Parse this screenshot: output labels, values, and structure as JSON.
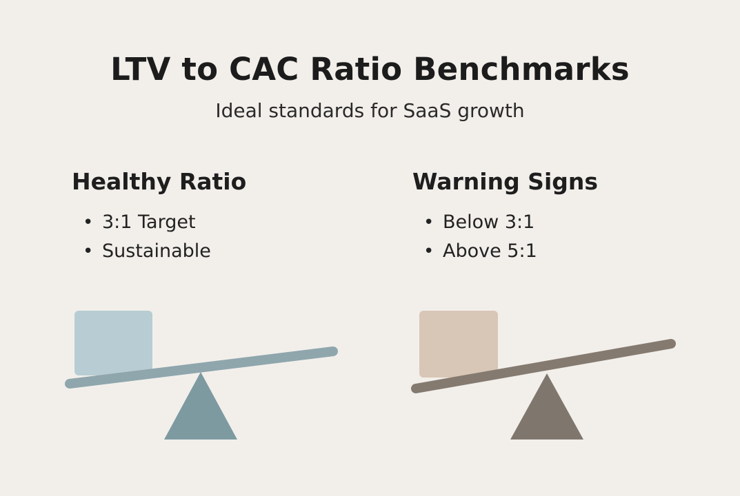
{
  "header": {
    "title": "LTV to CAC Ratio Benchmarks",
    "subtitle": "Ideal standards for SaaS growth"
  },
  "panels": [
    {
      "heading": "Healthy Ratio",
      "bullets": [
        "3:1 Target",
        "Sustainable"
      ],
      "colors": {
        "light_block": "#b8cdd3",
        "tall_block": "#2589a6",
        "beam": "#8fa6ad",
        "fulcrum": "#7d9aa1"
      }
    },
    {
      "heading": "Warning Signs",
      "bullets": [
        "Below 3:1",
        "Above 5:1"
      ],
      "colors": {
        "light_block": "#d8c6b6",
        "tall_block": "#a97866",
        "beam": "#857a70",
        "fulcrum": "#7f776d"
      }
    }
  ]
}
